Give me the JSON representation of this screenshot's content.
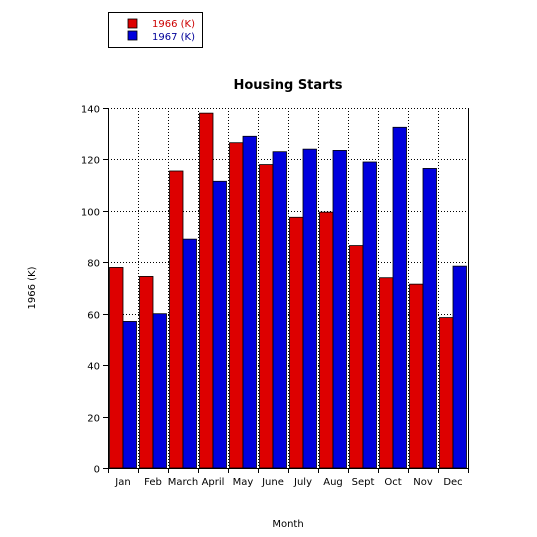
{
  "chart_data": {
    "type": "bar",
    "title": "Housing Starts",
    "xlabel": "Month",
    "ylabel": "1966 (K)",
    "ylim": [
      0,
      140
    ],
    "yticks": [
      0,
      20,
      40,
      60,
      80,
      100,
      120,
      140
    ],
    "grid": true,
    "legend_position": "top-left",
    "categories": [
      "Jan",
      "Feb",
      "March",
      "April",
      "May",
      "June",
      "July",
      "Aug",
      "Sept",
      "Oct",
      "Nov",
      "Dec"
    ],
    "series": [
      {
        "name": "1966 (K)",
        "color": "#dd0000",
        "text_color": "#cc0000",
        "values": [
          78,
          74.5,
          115.5,
          138,
          126.5,
          118,
          97.5,
          99.5,
          86.5,
          74,
          71.5,
          58.5
        ]
      },
      {
        "name": "1967 (K)",
        "color": "#0000dd",
        "text_color": "#000099",
        "values": [
          57,
          60,
          89,
          111.5,
          129,
          123,
          124,
          123.5,
          119,
          132.5,
          116.5,
          78.5
        ]
      }
    ]
  }
}
